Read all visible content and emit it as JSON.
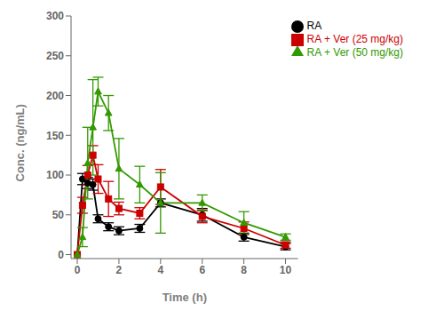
{
  "chart_data": {
    "type": "line",
    "x": [
      0,
      0.25,
      0.5,
      0.75,
      1.0,
      1.5,
      2.0,
      3.0,
      4.0,
      6.0,
      8.0,
      10.0
    ],
    "series": [
      {
        "name": "RA",
        "color": "#000000",
        "marker": "circle",
        "values": [
          0,
          95,
          90,
          88,
          45,
          35,
          30,
          33,
          65,
          50,
          22,
          10
        ],
        "errors": [
          0,
          7,
          7,
          7,
          5,
          5,
          5,
          5,
          5,
          8,
          5,
          4
        ]
      },
      {
        "name": "RA + Ver (25 mg/kg)",
        "color": "#cc0000",
        "marker": "square",
        "values": [
          0,
          62,
          100,
          125,
          95,
          70,
          58,
          52,
          85,
          48,
          33,
          12
        ],
        "errors": [
          0,
          10,
          12,
          12,
          18,
          22,
          8,
          7,
          22,
          8,
          8,
          4
        ]
      },
      {
        "name": "RA + Ver (50 mg/kg)",
        "color": "#339900",
        "marker": "triangle",
        "values": [
          0,
          22,
          115,
          160,
          205,
          178,
          108,
          88,
          65,
          65,
          40,
          22
        ],
        "errors": [
          0,
          12,
          45,
          60,
          18,
          22,
          38,
          23,
          38,
          10,
          14,
          4
        ]
      }
    ],
    "xlabel": "Time (h)",
    "ylabel": "Conc. (ng/mL)",
    "xlim": [
      -0.3,
      10.6
    ],
    "ylim": [
      -5,
      300
    ],
    "xticks": [
      0,
      2,
      4,
      6,
      8,
      10
    ],
    "yticks": [
      0,
      50,
      100,
      150,
      200,
      250,
      300
    ],
    "grid": false,
    "legend": "upper right"
  }
}
